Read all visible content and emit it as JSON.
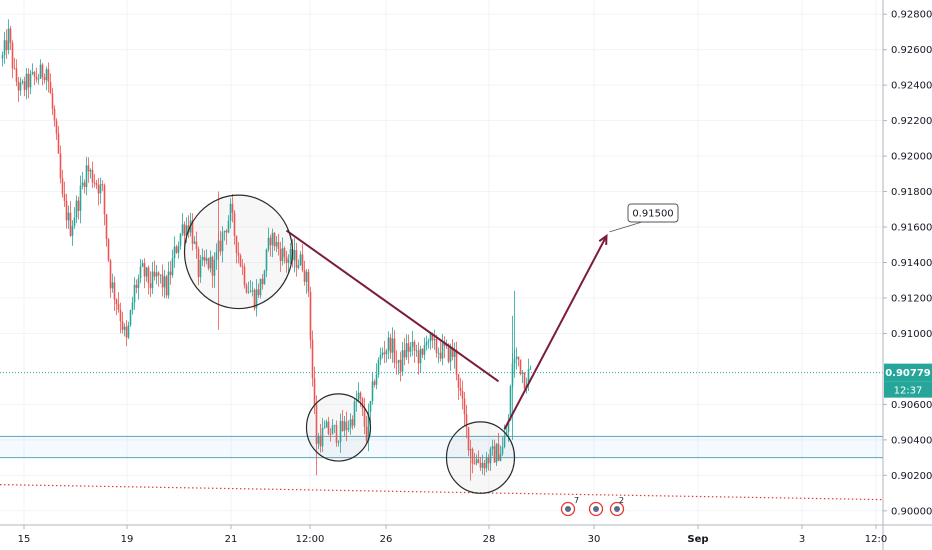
{
  "chart_data": {
    "type": "candlestick",
    "title": "",
    "xlabel": "",
    "ylabel": "",
    "x_tick_labels": [
      "15",
      "19",
      "21",
      "12:00",
      "26",
      "28",
      "30",
      "Sep",
      "3",
      "12:0"
    ],
    "y_tick_labels": [
      "0.92800",
      "0.92600",
      "0.92400",
      "0.92200",
      "0.92000",
      "0.91800",
      "0.91600",
      "0.91400",
      "0.91200",
      "0.91000",
      "0.90600",
      "0.90400",
      "0.90200",
      "0.90000"
    ],
    "ylim": [
      0.8992,
      0.9288
    ],
    "last_price": 0.90779,
    "last_price_label": "0.90779",
    "countdown_label": "12:37",
    "target_label": "0.91500",
    "target_price": 0.915,
    "support_zone": [
      0.903,
      0.9042
    ],
    "dotted_level": 0.9008,
    "bar_count": 265,
    "close_path": [
      [
        0,
        0.9255
      ],
      [
        3,
        0.9268
      ],
      [
        6,
        0.9245
      ],
      [
        9,
        0.9237
      ],
      [
        13,
        0.9242
      ],
      [
        18,
        0.9245
      ],
      [
        22,
        0.925
      ],
      [
        26,
        0.9218
      ],
      [
        30,
        0.9175
      ],
      [
        34,
        0.916
      ],
      [
        38,
        0.9175
      ],
      [
        42,
        0.9193
      ],
      [
        46,
        0.9187
      ],
      [
        50,
        0.918
      ],
      [
        54,
        0.913
      ],
      [
        58,
        0.9115
      ],
      [
        62,
        0.9095
      ],
      [
        66,
        0.9125
      ],
      [
        70,
        0.9135
      ],
      [
        74,
        0.9128
      ],
      [
        78,
        0.9132
      ],
      [
        82,
        0.9125
      ],
      [
        86,
        0.9145
      ],
      [
        90,
        0.916
      ],
      [
        94,
        0.9162
      ],
      [
        98,
        0.9135
      ],
      [
        102,
        0.914
      ],
      [
        106,
        0.9138
      ],
      [
        110,
        0.9155
      ],
      [
        114,
        0.9168
      ],
      [
        118,
        0.9145
      ],
      [
        122,
        0.9128
      ],
      [
        126,
        0.912
      ],
      [
        130,
        0.913
      ],
      [
        134,
        0.9155
      ],
      [
        138,
        0.9148
      ],
      [
        142,
        0.9142
      ],
      [
        146,
        0.9142
      ],
      [
        150,
        0.914
      ],
      [
        153,
        0.9125
      ],
      [
        155,
        0.9075
      ],
      [
        157,
        0.904
      ],
      [
        162,
        0.9045
      ],
      [
        168,
        0.9044
      ],
      [
        174,
        0.905
      ],
      [
        178,
        0.9065
      ],
      [
        182,
        0.9043
      ],
      [
        186,
        0.9075
      ],
      [
        190,
        0.909
      ],
      [
        194,
        0.9095
      ],
      [
        198,
        0.908
      ],
      [
        202,
        0.9092
      ],
      [
        206,
        0.909
      ],
      [
        210,
        0.9085
      ],
      [
        212,
        0.91
      ],
      [
        215,
        0.9092
      ],
      [
        220,
        0.909
      ],
      [
        226,
        0.9088
      ],
      [
        229,
        0.9065
      ],
      [
        232,
        0.9045
      ],
      [
        235,
        0.903
      ],
      [
        240,
        0.9027
      ],
      [
        246,
        0.9032
      ],
      [
        250,
        0.9035
      ],
      [
        253,
        0.905
      ],
      [
        255,
        0.9085
      ],
      [
        258,
        0.9085
      ],
      [
        261,
        0.9075
      ],
      [
        264,
        0.9078
      ]
    ],
    "annotations": {
      "trendline": [
        [
          142,
          0.9158
        ],
        [
          248,
          0.9073
        ]
      ],
      "projection_arrow": [
        [
          251,
          0.9046
        ],
        [
          302,
          0.9155
        ]
      ],
      "circles": [
        {
          "center": [
            118,
            0.9146
          ],
          "radius_bars": 27
        },
        {
          "center": [
            168,
            0.9047
          ],
          "radius_bars": 16
        },
        {
          "center": [
            239,
            0.903
          ],
          "radius_bars": 17
        }
      ]
    },
    "event_icons": [
      "7",
      "2"
    ]
  }
}
